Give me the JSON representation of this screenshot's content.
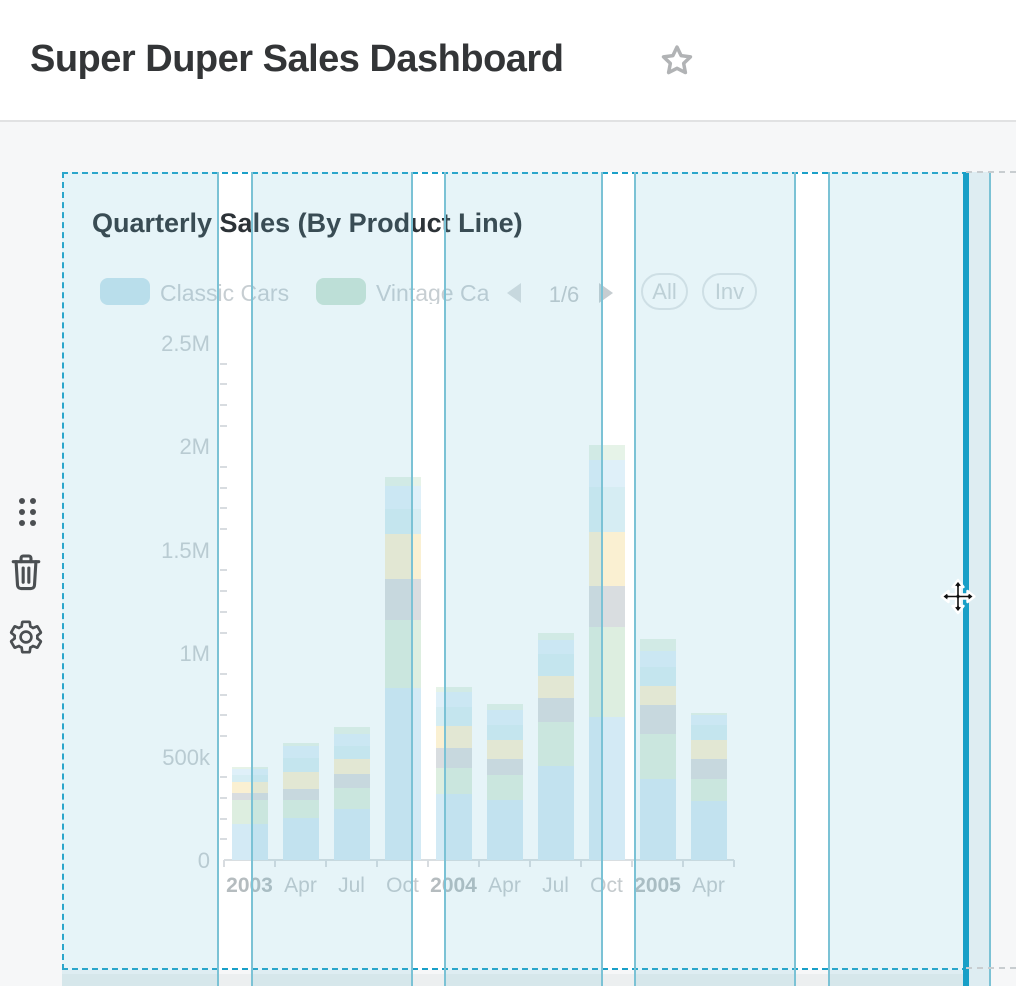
{
  "header": {
    "title": "Super Duper Sales Dashboard"
  },
  "icons": {
    "favorite": "star-outline",
    "drag": "drag-handle-dots",
    "delete": "trash",
    "settings": "gear",
    "legend_prev": "left-triangle",
    "legend_next": "right-triangle",
    "cursor": "move-cursor"
  },
  "side_toolbar": {
    "buttons": [
      "drag-handle",
      "delete-widget",
      "widget-settings"
    ]
  },
  "panel": {
    "title": "Quarterly Sales (By Product Line)",
    "legend": {
      "items": [
        {
          "label": "Classic Cars",
          "color": "#c9e4ef"
        },
        {
          "label": "Vintage Ca",
          "color": "#cde6d7"
        }
      ],
      "pager": {
        "current": "1/6"
      },
      "buttons": [
        {
          "label": "All"
        },
        {
          "label": "Inv"
        }
      ]
    }
  },
  "chart_data": {
    "type": "bar",
    "stacked": true,
    "title": "Quarterly Sales (By Product Line)",
    "legend_position": "top",
    "grid": true,
    "unit": "thousands (axis labeled in k/M)",
    "categories": [
      "2003",
      "Apr",
      "Jul",
      "Oct",
      "2004",
      "Apr",
      "Jul",
      "Oct",
      "2005",
      "Apr"
    ],
    "category_bold": [
      true,
      false,
      false,
      false,
      true,
      false,
      false,
      false,
      true,
      false
    ],
    "y_ticks": {
      "labels": [
        "0",
        "500k",
        "1M",
        "1.5M",
        "2M",
        "2.5M"
      ],
      "values": [
        0,
        500,
        1000,
        1500,
        2000,
        2500
      ]
    },
    "ylim": [
      0,
      2500
    ],
    "minor_tick_step": 100,
    "series": [
      {
        "name": "Classic Cars",
        "color": "#d3eaf5",
        "values": [
          175,
          205,
          245,
          830,
          320,
          290,
          455,
          690,
          390,
          285
        ]
      },
      {
        "name": "Vintage Cars",
        "color": "#ddeee0",
        "values": [
          115,
          85,
          105,
          330,
          125,
          120,
          210,
          435,
          220,
          105
        ]
      },
      {
        "name": "(gray series)",
        "color": "#d9dde0",
        "values": [
          35,
          55,
          65,
          200,
          95,
          80,
          120,
          200,
          140,
          100
        ]
      },
      {
        "name": "(yellow series)",
        "color": "#faf0d2",
        "values": [
          50,
          80,
          75,
          215,
          110,
          90,
          105,
          260,
          90,
          90
        ]
      },
      {
        "name": "(cyan series)",
        "color": "#d6edf3",
        "values": [
          35,
          70,
          60,
          120,
          90,
          75,
          105,
          220,
          95,
          75
        ]
      },
      {
        "name": "(pale blue series)",
        "color": "#dff0f9",
        "values": [
          30,
          55,
          60,
          115,
          70,
          70,
          70,
          130,
          75,
          45
        ]
      },
      {
        "name": "(pale green series)",
        "color": "#e6f3e8",
        "values": [
          10,
          15,
          35,
          40,
          25,
          30,
          35,
          70,
          60,
          10
        ]
      }
    ]
  },
  "colors": {
    "accent": "#18a0c8",
    "grid_guide_line": "#7bc2d5",
    "column_tint": "rgba(116,192,214,0.18)",
    "page_bg": "#f6f7f8",
    "divider": "#e1e2e3",
    "icon": "#4b4f52",
    "faded_text": "#c7ced2",
    "title_text": "#2c3237"
  }
}
